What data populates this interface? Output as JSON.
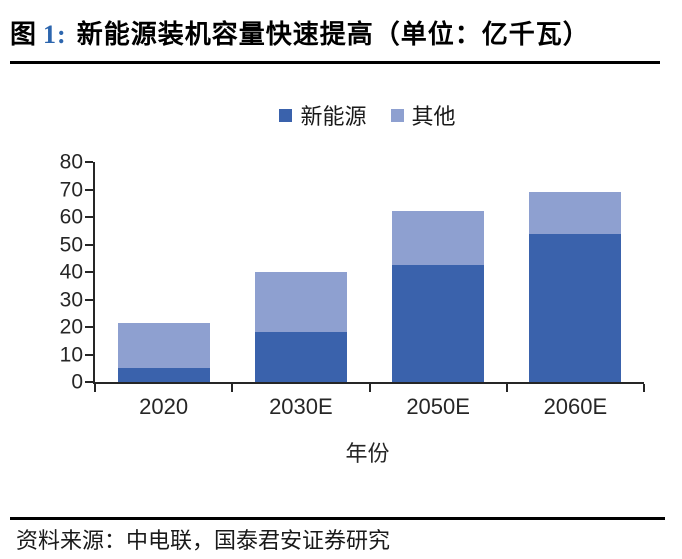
{
  "title": {
    "prefix": "图",
    "number": "1:",
    "text": "新能源装机容量快速提高（单位：亿千瓦）"
  },
  "source": "资料来源：中电联，国泰君安证券研究",
  "chart_data": {
    "type": "bar",
    "stacked": true,
    "title": "新能源装机容量快速提高",
    "unit": "亿千瓦",
    "categories": [
      "2020",
      "2030E",
      "2050E",
      "2060E"
    ],
    "series": [
      {
        "name": "新能源",
        "color": "#3A62AC",
        "values": [
          5.2,
          18.3,
          42.5,
          53.7
        ]
      },
      {
        "name": "其他",
        "color": "#8EA0D0",
        "values": [
          16.4,
          21.6,
          19.7,
          15.5
        ]
      }
    ],
    "totals": [
      21.6,
      39.9,
      62.2,
      69.2
    ],
    "xlabel": "年份",
    "ylabel": "",
    "ylim": [
      0,
      80
    ],
    "yticks": [
      0,
      10,
      20,
      30,
      40,
      50,
      60,
      70,
      80
    ],
    "legend_position": "top",
    "grid": false,
    "axis_color": "#262626"
  }
}
